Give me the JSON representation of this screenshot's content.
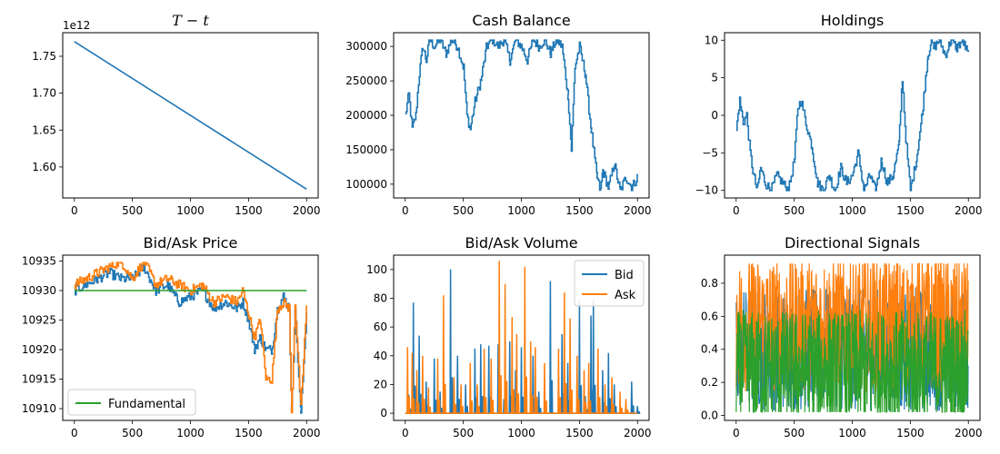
{
  "chart_data": [
    {
      "type": "line",
      "title": "T − t",
      "title_style": "math",
      "offset_label": "1e12",
      "xlim": [
        -100,
        2100
      ],
      "ylim": [
        1.558,
        1.782
      ],
      "xticks": [
        0,
        500,
        1000,
        1500,
        2000
      ],
      "yticks": [
        1.6,
        1.65,
        1.7,
        1.75
      ],
      "ytick_labels": [
        "1.60",
        "1.65",
        "1.70",
        "1.75"
      ],
      "series": [
        {
          "color": "#1f77b4",
          "x": [
            0,
            2000
          ],
          "y": [
            1.77,
            1.57
          ]
        }
      ]
    },
    {
      "type": "line",
      "title": "Cash Balance",
      "xlim": [
        -100,
        2100
      ],
      "ylim": [
        80000,
        320000
      ],
      "xticks": [
        0,
        500,
        1000,
        1500,
        2000
      ],
      "yticks": [
        100000,
        150000,
        200000,
        250000,
        300000
      ],
      "ytick_labels": [
        "100000",
        "150000",
        "200000",
        "250000",
        "300000"
      ],
      "series": [
        {
          "color": "#1f77b4",
          "x": [
            0,
            30,
            60,
            90,
            120,
            150,
            180,
            210,
            250,
            300,
            350,
            400,
            450,
            500,
            530,
            560,
            600,
            650,
            700,
            750,
            800,
            850,
            900,
            950,
            1000,
            1050,
            1100,
            1150,
            1200,
            1250,
            1300,
            1350,
            1400,
            1430,
            1460,
            1500,
            1550,
            1600,
            1650,
            1680,
            1700,
            1750,
            1800,
            1850,
            1900,
            1950,
            2000
          ],
          "y": [
            200000,
            230000,
            180000,
            200000,
            260000,
            300000,
            280000,
            310000,
            300000,
            310000,
            290000,
            310000,
            300000,
            270000,
            200000,
            180000,
            220000,
            250000,
            300000,
            310000,
            300000,
            310000,
            280000,
            310000,
            300000,
            280000,
            310000,
            300000,
            310000,
            290000,
            310000,
            300000,
            230000,
            150000,
            270000,
            300000,
            260000,
            180000,
            110000,
            90000,
            120000,
            95000,
            130000,
            90000,
            110000,
            95000,
            110000
          ]
        }
      ]
    },
    {
      "type": "line",
      "title": "Holdings",
      "xlim": [
        -100,
        2100
      ],
      "ylim": [
        -11,
        11
      ],
      "xticks": [
        0,
        500,
        1000,
        1500,
        2000
      ],
      "yticks": [
        -10,
        -5,
        0,
        5,
        10
      ],
      "ytick_labels": [
        "−10",
        "−5",
        "0",
        "5",
        "10"
      ],
      "series": [
        {
          "color": "#1f77b4",
          "x": [
            0,
            30,
            60,
            90,
            120,
            150,
            180,
            210,
            250,
            300,
            350,
            400,
            450,
            500,
            530,
            560,
            600,
            650,
            700,
            750,
            800,
            850,
            900,
            950,
            1000,
            1050,
            1100,
            1150,
            1200,
            1250,
            1300,
            1350,
            1400,
            1430,
            1460,
            1500,
            1550,
            1600,
            1650,
            1680,
            1700,
            1750,
            1800,
            1850,
            1900,
            1950,
            2000
          ],
          "y": [
            -2,
            2,
            -1,
            0,
            -5,
            -8,
            -10,
            -7,
            -9,
            -10,
            -8,
            -9,
            -10,
            -6,
            1,
            2,
            -1,
            -4,
            -9,
            -10,
            -8,
            -10,
            -7,
            -9,
            -8,
            -5,
            -10,
            -8,
            -10,
            -6,
            -9,
            -8,
            -4,
            5,
            -3,
            -10,
            -6,
            0,
            8,
            10,
            9,
            10,
            8,
            10,
            9,
            10,
            8
          ]
        }
      ]
    },
    {
      "type": "line",
      "title": "Bid/Ask Price",
      "xlim": [
        -100,
        2100
      ],
      "ylim": [
        10908,
        10936
      ],
      "xticks": [
        0,
        500,
        1000,
        1500,
        2000
      ],
      "yticks": [
        10910,
        10915,
        10920,
        10925,
        10930,
        10935
      ],
      "ytick_labels": [
        "10910",
        "10915",
        "10920",
        "10925",
        "10930",
        "10935"
      ],
      "legend": {
        "position": "lower left",
        "entries": [
          {
            "label": "Fundamental",
            "color": "#2ca02c"
          }
        ]
      },
      "series": [
        {
          "color": "#1f77b4",
          "x": [
            0,
            100,
            200,
            300,
            400,
            500,
            600,
            700,
            800,
            900,
            1000,
            1100,
            1200,
            1300,
            1400,
            1450,
            1500,
            1550,
            1600,
            1650,
            1700,
            1750,
            1800,
            1850,
            1870,
            1900,
            1950,
            2000
          ],
          "y": [
            10930,
            10931,
            10932,
            10933,
            10932,
            10932,
            10934,
            10930,
            10931,
            10928,
            10929,
            10930,
            10927,
            10928,
            10927,
            10928,
            10925,
            10920,
            10922,
            10920,
            10920,
            10927,
            10929,
            10927,
            10909,
            10927,
            10909,
            10927
          ]
        },
        {
          "color": "#ff7f0e",
          "x": [
            0,
            100,
            200,
            300,
            400,
            500,
            600,
            700,
            800,
            900,
            1000,
            1100,
            1200,
            1300,
            1400,
            1450,
            1500,
            1550,
            1600,
            1650,
            1700,
            1750,
            1800,
            1850,
            1870,
            1900,
            1950,
            2000
          ],
          "y": [
            10931,
            10932,
            10933,
            10934,
            10935,
            10932,
            10935,
            10931,
            10932,
            10931,
            10930,
            10931,
            10928,
            10929,
            10928,
            10930,
            10926,
            10922,
            10925,
            10915,
            10915,
            10927,
            10928,
            10927,
            10909,
            10928,
            10910,
            10928
          ]
        },
        {
          "color": "#2ca02c",
          "x": [
            0,
            2000
          ],
          "y": [
            10930,
            10930
          ]
        }
      ]
    },
    {
      "type": "line",
      "title": "Bid/Ask Volume",
      "xlim": [
        -100,
        2100
      ],
      "ylim": [
        -5,
        110
      ],
      "xticks": [
        0,
        500,
        1000,
        1500,
        2000
      ],
      "yticks": [
        0,
        20,
        40,
        60,
        80,
        100
      ],
      "ytick_labels": [
        "0",
        "20",
        "40",
        "60",
        "80",
        "100"
      ],
      "legend": {
        "position": "upper right",
        "entries": [
          {
            "label": "Bid",
            "color": "#1f77b4"
          },
          {
            "label": "Ask",
            "color": "#ff7f0e"
          }
        ]
      },
      "series": [
        {
          "name": "Bid",
          "color": "#1f77b4",
          "spikes": [
            [
              30,
              13
            ],
            [
              70,
              77
            ],
            [
              120,
              54
            ],
            [
              180,
              22
            ],
            [
              250,
              38
            ],
            [
              300,
              15
            ],
            [
              390,
              100
            ],
            [
              450,
              40
            ],
            [
              520,
              20
            ],
            [
              600,
              45
            ],
            [
              650,
              48
            ],
            [
              720,
              47
            ],
            [
              800,
              48
            ],
            [
              850,
              10
            ],
            [
              900,
              50
            ],
            [
              950,
              30
            ],
            [
              1000,
              46
            ],
            [
              1100,
              40
            ],
            [
              1150,
              15
            ],
            [
              1250,
              92
            ],
            [
              1350,
              55
            ],
            [
              1400,
              35
            ],
            [
              1500,
              78
            ],
            [
              1550,
              12
            ],
            [
              1600,
              68
            ],
            [
              1620,
              79
            ],
            [
              1700,
              30
            ],
            [
              1750,
              42
            ],
            [
              1800,
              20
            ],
            [
              1950,
              22
            ],
            [
              2000,
              5
            ]
          ]
        },
        {
          "name": "Ask",
          "color": "#ff7f0e",
          "spikes": [
            [
              20,
              46
            ],
            [
              60,
              42
            ],
            [
              100,
              30
            ],
            [
              150,
              40
            ],
            [
              200,
              18
            ],
            [
              280,
              38
            ],
            [
              330,
              82
            ],
            [
              420,
              25
            ],
            [
              480,
              20
            ],
            [
              560,
              35
            ],
            [
              620,
              20
            ],
            [
              680,
              45
            ],
            [
              740,
              38
            ],
            [
              810,
              106
            ],
            [
              860,
              90
            ],
            [
              920,
              67
            ],
            [
              960,
              55
            ],
            [
              1030,
              102
            ],
            [
              1080,
              50
            ],
            [
              1120,
              46
            ],
            [
              1200,
              35
            ],
            [
              1320,
              45
            ],
            [
              1370,
              84
            ],
            [
              1420,
              66
            ],
            [
              1480,
              40
            ],
            [
              1540,
              30
            ],
            [
              1580,
              35
            ],
            [
              1660,
              45
            ],
            [
              1720,
              20
            ],
            [
              1780,
              25
            ],
            [
              1850,
              15
            ],
            [
              1900,
              10
            ]
          ]
        }
      ]
    },
    {
      "type": "line",
      "title": "Directional Signals",
      "xlim": [
        -100,
        2100
      ],
      "ylim": [
        -0.03,
        0.97
      ],
      "xticks": [
        0,
        500,
        1000,
        1500,
        2000
      ],
      "yticks": [
        0.0,
        0.2,
        0.4,
        0.6,
        0.8
      ],
      "ytick_labels": [
        "0.0",
        "0.2",
        "0.4",
        "0.6",
        "0.8"
      ],
      "series": [
        {
          "color": "#1f77b4",
          "noise": {
            "min": 0.02,
            "max": 0.85,
            "mean": 0.4
          }
        },
        {
          "color": "#ff7f0e",
          "noise": {
            "min": 0.0,
            "max": 0.92,
            "mean": 0.55
          }
        },
        {
          "color": "#2ca02c",
          "noise": {
            "min": 0.02,
            "max": 0.82,
            "mean": 0.28
          }
        }
      ]
    }
  ]
}
